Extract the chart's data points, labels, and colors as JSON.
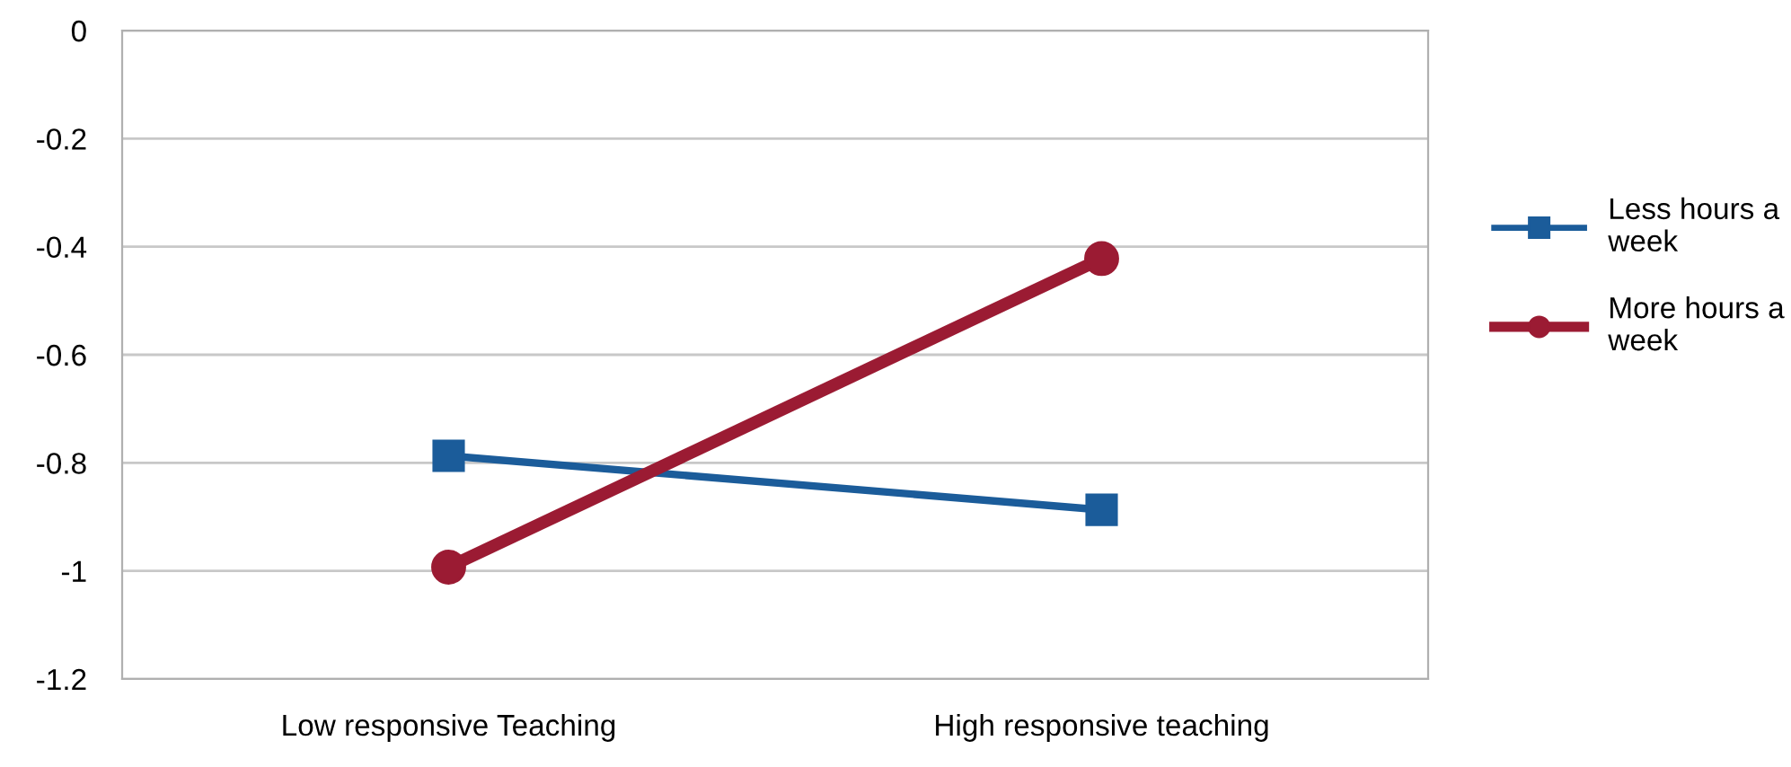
{
  "chart_data": {
    "type": "line",
    "categories": [
      "Low responsive Teaching",
      "High responsive teaching"
    ],
    "series": [
      {
        "name": "Less hours a week",
        "color": "#1b5c9a",
        "marker": "square",
        "values": [
          -0.787,
          -0.887
        ]
      },
      {
        "name": "More hours a week",
        "color": "#9b1b33",
        "marker": "circle",
        "values": [
          -0.993,
          -0.422
        ]
      }
    ],
    "ylim": [
      -1.2,
      0
    ],
    "yticks": [
      -1.2,
      -1,
      -0.8,
      -0.6,
      -0.4,
      -0.2,
      0
    ],
    "grid": "y",
    "legend": "right",
    "line_style": "solid"
  }
}
